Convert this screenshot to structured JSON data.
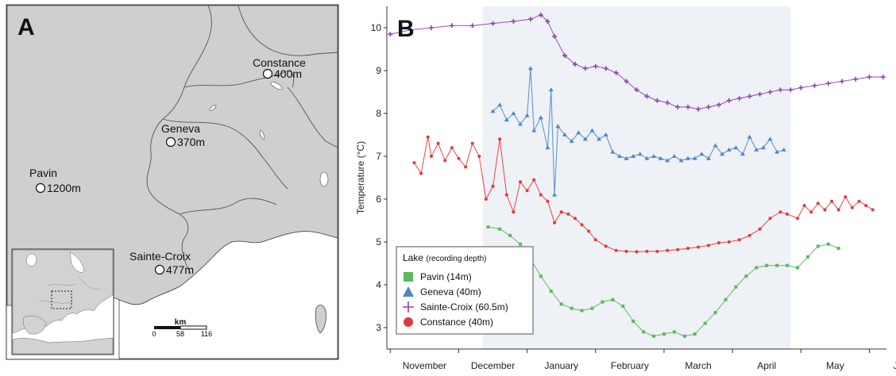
{
  "map": {
    "panel_label": "A",
    "lakes": [
      {
        "name": "Constance",
        "depth": "400m"
      },
      {
        "name": "Geneva",
        "depth": "370m"
      },
      {
        "name": "Pavin",
        "depth": "1200m"
      },
      {
        "name": "Sainte-Croix",
        "depth": "477m"
      }
    ],
    "scale_unit": "km",
    "scale_ticks": [
      "0",
      "58",
      "116"
    ]
  },
  "chart_data": {
    "type": "line",
    "panel_label": "B",
    "ylabel": "Temperature (°C)",
    "ylim": [
      2.5,
      10.5
    ],
    "yticks": [
      3,
      4,
      5,
      6,
      7,
      8,
      9,
      10
    ],
    "months": [
      "November",
      "December",
      "January",
      "February",
      "March",
      "April",
      "May",
      "June"
    ],
    "x_unit": "month index (0 = start of November)",
    "xlim": [
      -0.05,
      7.25
    ],
    "shaded_period": [
      1.35,
      5.85
    ],
    "legend": {
      "title": "Lake",
      "subtitle": "(recording depth)",
      "position": "bottom-left"
    },
    "colors": {
      "Pavin": "#5cb85c",
      "Geneva": "#4f86c6",
      "Sainte-Croix": "#8e44ad",
      "Constance": "#e0393e"
    },
    "series": [
      {
        "name": "Pavin (14m)",
        "key": "Pavin",
        "marker": "square",
        "x": [
          1.43,
          1.6,
          1.75,
          1.9,
          2.05,
          2.2,
          2.35,
          2.5,
          2.65,
          2.8,
          2.95,
          3.1,
          3.25,
          3.4,
          3.55,
          3.7,
          3.85,
          4.0,
          4.15,
          4.3,
          4.45,
          4.6,
          4.75,
          4.9,
          5.05,
          5.2,
          5.35,
          5.5,
          5.65,
          5.8,
          5.95,
          6.1,
          6.25,
          6.4,
          6.55
        ],
        "y": [
          5.35,
          5.3,
          5.15,
          4.95,
          4.6,
          4.2,
          3.85,
          3.55,
          3.45,
          3.4,
          3.45,
          3.6,
          3.65,
          3.5,
          3.15,
          2.9,
          2.8,
          2.85,
          2.9,
          2.8,
          2.85,
          3.1,
          3.35,
          3.65,
          3.95,
          4.2,
          4.4,
          4.45,
          4.45,
          4.45,
          4.4,
          4.65,
          4.9,
          4.95,
          4.85
        ]
      },
      {
        "name": "Geneva (40m)",
        "key": "Geneva",
        "marker": "triangle",
        "x": [
          1.5,
          1.6,
          1.7,
          1.8,
          1.9,
          2.0,
          2.05,
          2.1,
          2.2,
          2.3,
          2.35,
          2.4,
          2.45,
          2.55,
          2.65,
          2.75,
          2.85,
          2.95,
          3.05,
          3.15,
          3.25,
          3.35,
          3.45,
          3.55,
          3.65,
          3.75,
          3.85,
          3.95,
          4.05,
          4.15,
          4.25,
          4.35,
          4.45,
          4.55,
          4.65,
          4.75,
          4.85,
          4.95,
          5.05,
          5.15,
          5.25,
          5.35,
          5.45,
          5.55,
          5.65,
          5.75
        ],
        "y": [
          8.05,
          8.2,
          7.85,
          8.0,
          7.75,
          7.95,
          9.05,
          7.6,
          7.9,
          7.2,
          8.55,
          6.1,
          7.7,
          7.5,
          7.35,
          7.55,
          7.4,
          7.6,
          7.4,
          7.5,
          7.1,
          7.0,
          6.95,
          7.0,
          7.05,
          6.95,
          7.0,
          6.95,
          6.9,
          7.0,
          6.9,
          6.95,
          6.95,
          7.05,
          6.95,
          7.25,
          7.05,
          7.15,
          7.2,
          7.05,
          7.45,
          7.15,
          7.2,
          7.4,
          7.1,
          7.15
        ]
      },
      {
        "name": "Sainte-Croix (60.5m)",
        "key": "Sainte-Croix",
        "marker": "plus",
        "x": [
          0.0,
          0.3,
          0.6,
          0.9,
          1.2,
          1.5,
          1.8,
          2.05,
          2.2,
          2.3,
          2.4,
          2.55,
          2.7,
          2.85,
          3.0,
          3.15,
          3.3,
          3.45,
          3.6,
          3.75,
          3.9,
          4.05,
          4.2,
          4.35,
          4.5,
          4.65,
          4.8,
          4.95,
          5.1,
          5.25,
          5.4,
          5.55,
          5.7,
          5.85,
          6.0,
          6.2,
          6.4,
          6.6,
          6.8,
          7.0,
          7.2
        ],
        "y": [
          9.85,
          9.95,
          10.0,
          10.05,
          10.05,
          10.1,
          10.15,
          10.2,
          10.3,
          10.15,
          9.8,
          9.35,
          9.15,
          9.05,
          9.1,
          9.05,
          8.95,
          8.75,
          8.55,
          8.4,
          8.3,
          8.25,
          8.15,
          8.15,
          8.1,
          8.15,
          8.2,
          8.3,
          8.35,
          8.4,
          8.45,
          8.5,
          8.55,
          8.55,
          8.6,
          8.65,
          8.7,
          8.75,
          8.8,
          8.85,
          8.85
        ]
      },
      {
        "name": "Constance (40m)",
        "key": "Constance",
        "marker": "circle",
        "x": [
          0.35,
          0.45,
          0.55,
          0.6,
          0.7,
          0.8,
          0.9,
          1.0,
          1.1,
          1.2,
          1.3,
          1.4,
          1.5,
          1.6,
          1.7,
          1.8,
          1.9,
          2.0,
          2.1,
          2.2,
          2.3,
          2.4,
          2.5,
          2.6,
          2.7,
          2.8,
          2.9,
          3.0,
          3.15,
          3.3,
          3.45,
          3.6,
          3.75,
          3.9,
          4.05,
          4.2,
          4.35,
          4.5,
          4.65,
          4.8,
          4.95,
          5.1,
          5.25,
          5.4,
          5.55,
          5.7,
          5.8,
          5.95,
          6.05,
          6.15,
          6.25,
          6.35,
          6.45,
          6.55,
          6.65,
          6.75,
          6.85,
          6.95,
          7.05
        ],
        "y": [
          6.85,
          6.6,
          7.45,
          7.0,
          7.3,
          6.9,
          7.2,
          6.95,
          6.75,
          7.3,
          7.0,
          6.0,
          6.3,
          7.4,
          6.1,
          5.7,
          6.4,
          6.2,
          6.45,
          6.1,
          5.95,
          5.45,
          5.7,
          5.65,
          5.55,
          5.4,
          5.25,
          5.05,
          4.9,
          4.8,
          4.78,
          4.77,
          4.78,
          4.78,
          4.8,
          4.82,
          4.85,
          4.88,
          4.92,
          4.98,
          5.0,
          5.05,
          5.15,
          5.3,
          5.55,
          5.7,
          5.65,
          5.55,
          5.85,
          5.7,
          5.9,
          5.75,
          5.95,
          5.75,
          6.05,
          5.8,
          5.95,
          5.85,
          5.75
        ]
      }
    ]
  }
}
